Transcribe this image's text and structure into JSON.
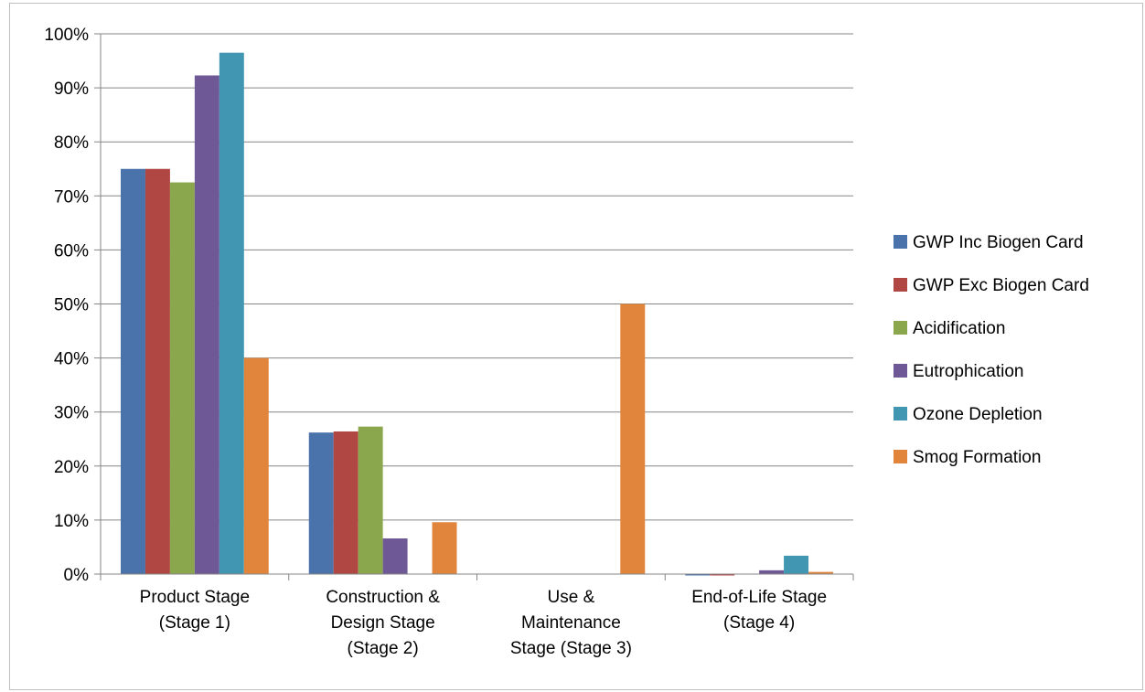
{
  "chart_data": {
    "type": "bar",
    "categories": [
      [
        "Product Stage",
        "(Stage 1)"
      ],
      [
        "Construction &",
        "Design Stage",
        "(Stage 2)"
      ],
      [
        "Use &",
        "Maintenance",
        "Stage (Stage 3)"
      ],
      [
        "End-of-Life Stage",
        "(Stage 4)"
      ]
    ],
    "series": [
      {
        "name": "GWP Inc Biogen Card",
        "color": "#4a73ab",
        "values": [
          75.0,
          26.2,
          0.0,
          -0.2
        ]
      },
      {
        "name": "GWP Exc Biogen Card",
        "color": "#b14743",
        "values": [
          75.0,
          26.4,
          0.0,
          -0.2
        ]
      },
      {
        "name": "Acidification",
        "color": "#8aa74e",
        "values": [
          72.5,
          27.3,
          0.0,
          0.0
        ]
      },
      {
        "name": "Eutrophication",
        "color": "#6f5896",
        "values": [
          92.3,
          6.6,
          0.0,
          0.7
        ]
      },
      {
        "name": "Ozone Depletion",
        "color": "#4197b1",
        "values": [
          96.5,
          0.0,
          0.0,
          3.4
        ]
      },
      {
        "name": "Smog Formation",
        "color": "#e0853b",
        "values": [
          40.0,
          9.6,
          50.0,
          0.4
        ]
      }
    ],
    "yticks": [
      "0%",
      "10%",
      "20%",
      "30%",
      "40%",
      "50%",
      "60%",
      "70%",
      "80%",
      "90%",
      "100%"
    ],
    "ylim": [
      0,
      100
    ],
    "grid": true,
    "legend_position": "right",
    "title": "",
    "xlabel": "",
    "ylabel": ""
  }
}
